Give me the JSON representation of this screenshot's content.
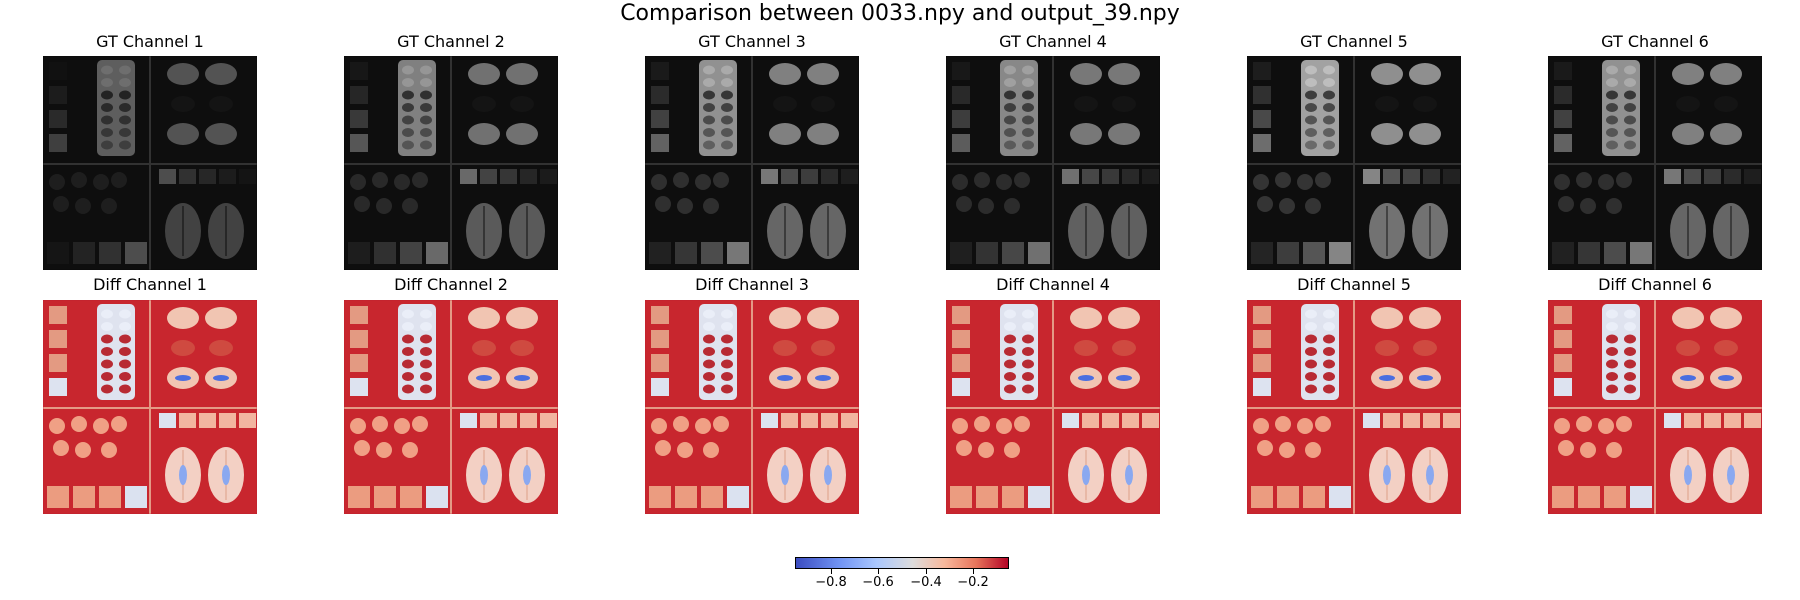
{
  "title": "Comparison between 0033.npy and output_39.npy",
  "chart_data": {
    "type": "heatmap",
    "title": "Comparison between 0033.npy and output_39.npy",
    "panels": [
      {
        "row": "GT",
        "title": "GT Channel 1",
        "colormap": "gray",
        "brightness": 0.55
      },
      {
        "row": "GT",
        "title": "GT Channel 2",
        "colormap": "gray",
        "brightness": 0.75
      },
      {
        "row": "GT",
        "title": "GT Channel 3",
        "colormap": "gray",
        "brightness": 0.85
      },
      {
        "row": "GT",
        "title": "GT Channel 4",
        "colormap": "gray",
        "brightness": 0.8
      },
      {
        "row": "GT",
        "title": "GT Channel 5",
        "colormap": "gray",
        "brightness": 0.95
      },
      {
        "row": "GT",
        "title": "GT Channel 6",
        "colormap": "gray",
        "brightness": 0.85
      },
      {
        "row": "Diff",
        "title": "Diff Channel 1",
        "colormap": "coolwarm"
      },
      {
        "row": "Diff",
        "title": "Diff Channel 2",
        "colormap": "coolwarm"
      },
      {
        "row": "Diff",
        "title": "Diff Channel 3",
        "colormap": "coolwarm"
      },
      {
        "row": "Diff",
        "title": "Diff Channel 4",
        "colormap": "coolwarm"
      },
      {
        "row": "Diff",
        "title": "Diff Channel 5",
        "colormap": "coolwarm"
      },
      {
        "row": "Diff",
        "title": "Diff Channel 6",
        "colormap": "coolwarm"
      }
    ],
    "colorbar": {
      "colormap": "coolwarm",
      "range": [
        -0.95,
        -0.05
      ],
      "ticks": [
        -0.8,
        -0.6,
        -0.4,
        -0.2
      ],
      "tick_labels": [
        "−0.8",
        "−0.6",
        "−0.4",
        "−0.2"
      ]
    }
  }
}
